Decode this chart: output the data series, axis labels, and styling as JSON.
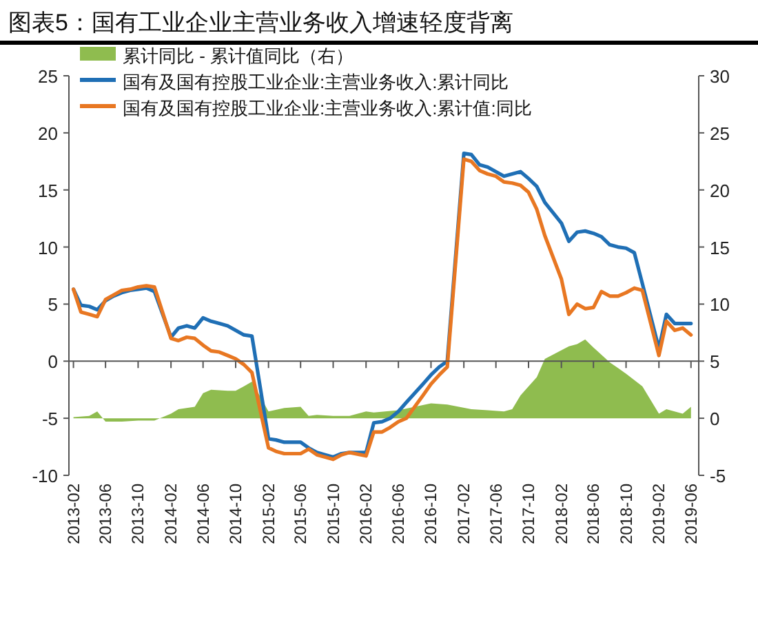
{
  "chart_data": {
    "type": "line",
    "title": "图表5：国有工业企业主营业务收入增速轻度背离",
    "xlim": [
      "2013-01-15",
      "2019-06-30"
    ],
    "xticks": [
      "2013-02",
      "2013-06",
      "2013-10",
      "2014-02",
      "2014-06",
      "2014-10",
      "2015-02",
      "2015-06",
      "2015-10",
      "2016-02",
      "2016-06",
      "2016-10",
      "2017-02",
      "2017-06",
      "2017-10",
      "2018-02",
      "2018-06",
      "2018-10",
      "2019-02",
      "2019-06"
    ],
    "ylim": [
      -10,
      25
    ],
    "yticks": [
      -10,
      -5,
      0,
      5,
      10,
      15,
      20,
      25
    ],
    "y2lim": [
      -5,
      30
    ],
    "y2ticks": [
      -5,
      0,
      5,
      10,
      15,
      20,
      25,
      30
    ],
    "legend": "top left",
    "marker": "none",
    "line_style": "solid",
    "series": [
      {
        "name": "累计同比 - 累计值同比（右）",
        "type": "area",
        "axis": "y2",
        "color": "#8fbc4f",
        "x": [
          "2013-02",
          "2013-04",
          "2013-05",
          "2013-06",
          "2013-08",
          "2013-10",
          "2013-12",
          "2014-02",
          "2014-03",
          "2014-05",
          "2014-06",
          "2014-07",
          "2014-09",
          "2014-10",
          "2014-11",
          "2014-12",
          "2015-02",
          "2015-04",
          "2015-06",
          "2015-07",
          "2015-08",
          "2015-10",
          "2015-12",
          "2016-02",
          "2016-03",
          "2016-06",
          "2016-08",
          "2016-10",
          "2016-12",
          "2017-03",
          "2017-05",
          "2017-07",
          "2017-08",
          "2017-09",
          "2017-11",
          "2017-12",
          "2018-03",
          "2018-04",
          "2018-05",
          "2018-06",
          "2018-08",
          "2018-09",
          "2018-10",
          "2018-12",
          "2019-02",
          "2019-03",
          "2019-05",
          "2019-06"
        ],
        "values": [
          0.1,
          0.2,
          0.6,
          -0.3,
          -0.3,
          -0.2,
          -0.2,
          0.4,
          0.8,
          1.0,
          2.2,
          2.5,
          2.4,
          2.4,
          2.8,
          3.2,
          0.6,
          0.9,
          1.0,
          0.2,
          0.3,
          0.2,
          0.2,
          0.6,
          0.5,
          0.7,
          1.0,
          1.3,
          1.2,
          0.8,
          0.7,
          0.6,
          0.8,
          2.0,
          3.6,
          5.2,
          6.3,
          6.5,
          6.9,
          6.2,
          4.9,
          4.4,
          3.9,
          2.8,
          0.4,
          0.8,
          0.4,
          1.0
        ]
      },
      {
        "name": "国有及国有控股工业企业:主营业务收入:累计同比",
        "type": "line",
        "color": "#1f6fb5",
        "x": [
          "2013-02",
          "2013-03",
          "2013-04",
          "2013-05",
          "2013-06",
          "2013-07",
          "2013-08",
          "2013-09",
          "2013-10",
          "2013-11",
          "2013-12",
          "2014-02",
          "2014-03",
          "2014-04",
          "2014-05",
          "2014-06",
          "2014-07",
          "2014-08",
          "2014-09",
          "2014-10",
          "2014-11",
          "2014-12",
          "2015-02",
          "2015-03",
          "2015-04",
          "2015-05",
          "2015-06",
          "2015-07",
          "2015-08",
          "2015-09",
          "2015-10",
          "2015-11",
          "2015-12",
          "2016-02",
          "2016-03",
          "2016-04",
          "2016-05",
          "2016-06",
          "2016-07",
          "2016-08",
          "2016-09",
          "2016-10",
          "2016-11",
          "2016-12",
          "2017-02",
          "2017-03",
          "2017-04",
          "2017-05",
          "2017-06",
          "2017-07",
          "2017-08",
          "2017-09",
          "2017-10",
          "2017-11",
          "2017-12",
          "2018-02",
          "2018-03",
          "2018-04",
          "2018-05",
          "2018-06",
          "2018-07",
          "2018-08",
          "2018-09",
          "2018-10",
          "2018-11",
          "2018-12",
          "2019-02",
          "2019-03",
          "2019-04",
          "2019-05",
          "2019-06"
        ],
        "values": [
          6.3,
          4.9,
          4.8,
          4.5,
          5.3,
          5.7,
          6.0,
          6.2,
          6.3,
          6.4,
          6.1,
          2.1,
          2.9,
          3.1,
          2.9,
          3.8,
          3.5,
          3.3,
          3.1,
          2.7,
          2.3,
          2.2,
          -6.8,
          -6.9,
          -7.1,
          -7.1,
          -7.1,
          -7.6,
          -8.0,
          -8.2,
          -8.4,
          -8.1,
          -8.0,
          -8.0,
          -5.4,
          -5.3,
          -5.0,
          -4.4,
          -3.6,
          -2.8,
          -2.0,
          -1.2,
          -0.5,
          0.0,
          18.2,
          18.1,
          17.2,
          17.0,
          16.6,
          16.2,
          16.4,
          16.6,
          16.0,
          15.3,
          13.9,
          12.1,
          10.5,
          11.3,
          11.4,
          11.2,
          10.9,
          10.2,
          10.0,
          9.9,
          9.5,
          6.8,
          1.1,
          4.1,
          3.3,
          3.3,
          3.3
        ]
      },
      {
        "name": "国有及国有控股工业企业:主营业务收入:累计值:同比",
        "type": "line",
        "color": "#e87722",
        "x": [
          "2013-02",
          "2013-03",
          "2013-04",
          "2013-05",
          "2013-06",
          "2013-07",
          "2013-08",
          "2013-09",
          "2013-10",
          "2013-11",
          "2013-12",
          "2014-02",
          "2014-03",
          "2014-04",
          "2014-05",
          "2014-06",
          "2014-07",
          "2014-08",
          "2014-09",
          "2014-10",
          "2014-11",
          "2014-12",
          "2015-02",
          "2015-03",
          "2015-04",
          "2015-05",
          "2015-06",
          "2015-07",
          "2015-08",
          "2015-09",
          "2015-10",
          "2015-11",
          "2015-12",
          "2016-02",
          "2016-03",
          "2016-04",
          "2016-05",
          "2016-06",
          "2016-07",
          "2016-08",
          "2016-09",
          "2016-10",
          "2016-11",
          "2016-12",
          "2017-02",
          "2017-03",
          "2017-04",
          "2017-05",
          "2017-06",
          "2017-07",
          "2017-08",
          "2017-09",
          "2017-10",
          "2017-11",
          "2017-12",
          "2018-02",
          "2018-03",
          "2018-04",
          "2018-05",
          "2018-06",
          "2018-07",
          "2018-08",
          "2018-09",
          "2018-10",
          "2018-11",
          "2018-12",
          "2019-02",
          "2019-03",
          "2019-04",
          "2019-05",
          "2019-06"
        ],
        "values": [
          6.3,
          4.3,
          4.1,
          3.9,
          5.4,
          5.8,
          6.2,
          6.3,
          6.5,
          6.6,
          6.5,
          2.0,
          1.8,
          2.1,
          2.0,
          1.4,
          0.9,
          0.8,
          0.5,
          0.2,
          -0.3,
          -1.0,
          -7.6,
          -7.9,
          -8.1,
          -8.1,
          -8.1,
          -7.7,
          -8.2,
          -8.4,
          -8.6,
          -8.2,
          -8.0,
          -8.3,
          -6.2,
          -6.2,
          -5.8,
          -5.3,
          -5.0,
          -4.0,
          -3.0,
          -2.0,
          -1.2,
          -0.5,
          17.7,
          17.5,
          16.7,
          16.4,
          16.2,
          15.7,
          15.6,
          15.4,
          14.8,
          13.3,
          11.0,
          7.2,
          4.1,
          5.0,
          4.6,
          4.7,
          6.1,
          5.7,
          5.7,
          6.0,
          6.4,
          6.2,
          0.5,
          3.5,
          2.7,
          2.9,
          2.3
        ]
      }
    ]
  }
}
